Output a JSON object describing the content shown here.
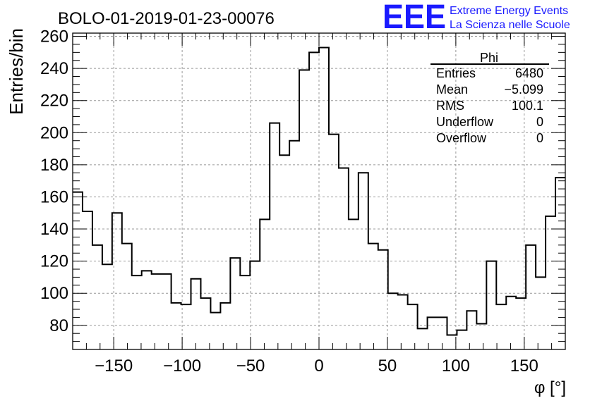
{
  "chart_data": {
    "type": "bar",
    "title": "BOLO-01-2019-01-23-00076",
    "xlabel": "φ [°]",
    "ylabel": "Entries/bin",
    "xlim": [
      -180,
      180
    ],
    "ylim": [
      65,
      262
    ],
    "bin_width": 7.2,
    "x_ticks": [
      -150,
      -100,
      -50,
      0,
      50,
      100,
      150
    ],
    "y_ticks": [
      80,
      100,
      120,
      140,
      160,
      180,
      200,
      220,
      240,
      260
    ],
    "grid": true,
    "values": [
      163,
      151,
      130,
      118,
      150,
      131,
      111,
      114,
      112,
      112,
      94,
      93,
      109,
      97,
      88,
      94,
      122,
      111,
      120,
      146,
      206,
      186,
      195,
      239,
      250,
      253,
      199,
      178,
      146,
      175,
      131,
      127,
      100,
      99,
      93,
      78,
      85,
      85,
      74,
      77,
      89,
      81,
      120,
      93,
      98,
      97,
      130,
      110,
      148,
      172
    ]
  },
  "stats": {
    "name": "Phi",
    "rows": [
      {
        "label": "Entries",
        "value": "6480"
      },
      {
        "label": "Mean",
        "value": "−5.099"
      },
      {
        "label": "RMS",
        "value": "100.1"
      },
      {
        "label": "Underflow",
        "value": "0"
      },
      {
        "label": "Overflow",
        "value": "0"
      }
    ]
  },
  "logo": {
    "mark": "EEE",
    "line1": "Extreme Energy Events",
    "line2": "La Scienza nelle Scuole",
    "color": "#1a1aff"
  }
}
